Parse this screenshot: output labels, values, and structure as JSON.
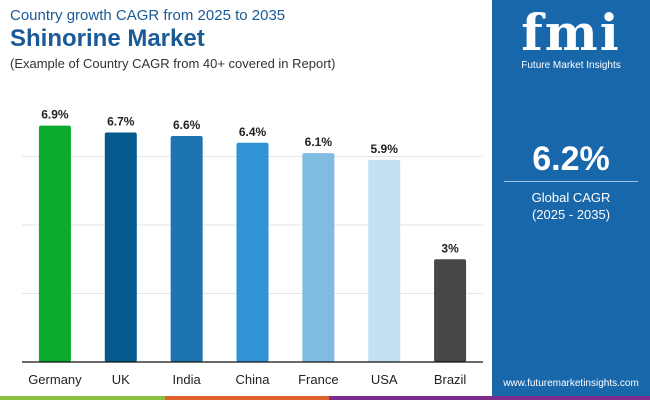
{
  "header": {
    "subtitle": "Country growth CAGR from 2025 to 2035",
    "title": "Shinorine Market",
    "note": "(Example of Country CAGR from 40+ covered in Report)"
  },
  "panel": {
    "logo": "fmi",
    "logo_text": "Future Market Insights",
    "cagr": "6.2%",
    "cagr_label": "Global CAGR",
    "cagr_period": "(2025 - 2035)",
    "url": "www.futuremarketinsights.com",
    "bg": "#1967ab"
  },
  "chart_data": {
    "type": "bar",
    "categories": [
      "Germany",
      "UK",
      "India",
      "China",
      "France",
      "USA",
      "Brazil"
    ],
    "values": [
      6.9,
      6.7,
      6.6,
      6.4,
      6.1,
      5.9,
      3.0
    ],
    "labels": [
      "6.9%",
      "6.7%",
      "6.6%",
      "6.4%",
      "6.1%",
      "5.9%",
      "3%"
    ],
    "colors": [
      "#0aab2e",
      "#045a8d",
      "#1c75b0",
      "#3192d4",
      "#7fbbe2",
      "#c4e1f3",
      "#474747"
    ],
    "ylim": [
      0,
      8
    ],
    "grid": true,
    "title": "",
    "xlabel": "",
    "ylabel": ""
  },
  "stripes": [
    "#8cc13f",
    "#e2622b",
    "#7d2c8c"
  ]
}
